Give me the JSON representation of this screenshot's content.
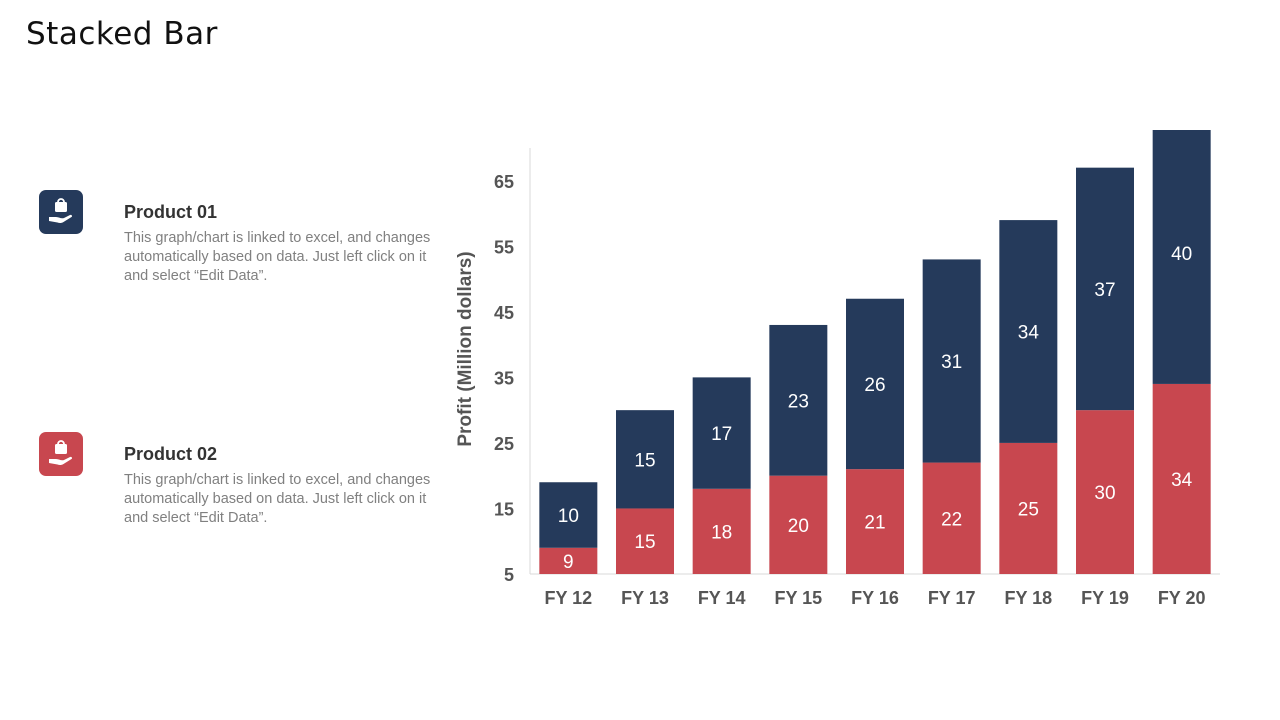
{
  "title": "Stacked Bar",
  "legend": [
    {
      "name": "Product 01",
      "description": "This graph/chart is linked to excel, and changes automatically based on data. Just left click on it and select “Edit Data”.",
      "color": "#253A5B",
      "icon": "hand-holding-bag-icon"
    },
    {
      "name": "Product 02",
      "description": "This graph/chart is linked to excel, and changes automatically based on data. Just left click on it and select “Edit Data”.",
      "color": "#C8474F",
      "icon": "hand-holding-bag-icon"
    }
  ],
  "chart_data": {
    "type": "bar",
    "stacked": true,
    "categories": [
      "FY 12",
      "FY 13",
      "FY 14",
      "FY 15",
      "FY 16",
      "FY 17",
      "FY 18",
      "FY 19",
      "FY 20"
    ],
    "series": [
      {
        "name": "Product 02",
        "color": "#C8474F",
        "values": [
          9,
          15,
          18,
          20,
          21,
          22,
          25,
          30,
          34
        ]
      },
      {
        "name": "Product 01",
        "color": "#253A5B",
        "values": [
          10,
          15,
          17,
          23,
          26,
          31,
          34,
          37,
          40
        ]
      }
    ],
    "ylabel": "Profit  (Million dollars)",
    "xlabel": "",
    "ylim": [
      5,
      70
    ],
    "yticks": [
      5,
      15,
      25,
      35,
      45,
      55,
      65
    ],
    "grid": false
  }
}
